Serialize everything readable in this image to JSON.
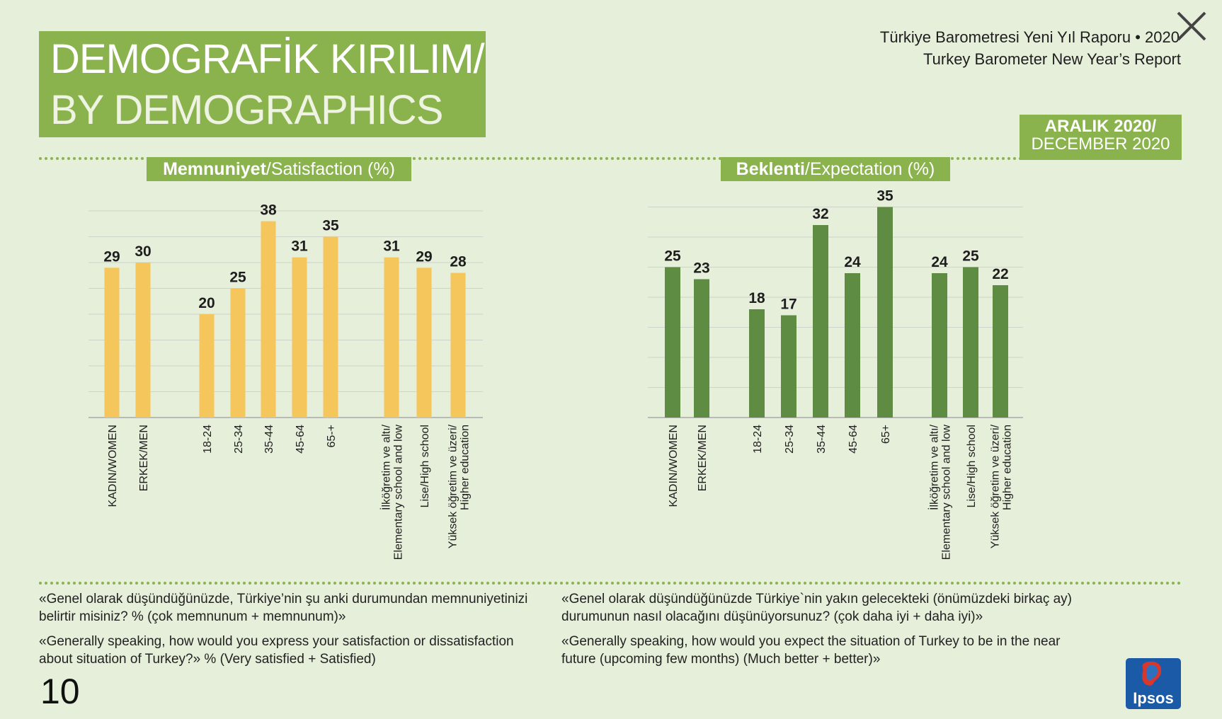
{
  "title": {
    "line1": "DEMOGRAFİK KIRILIM/",
    "line2": "BY DEMOGRAPHICS"
  },
  "report": {
    "turkish": "Türkiye Barometresi Yeni Yıl Raporu • 2020",
    "english": "Turkey Barometer New Year’s Report"
  },
  "date": {
    "turkish": "ARALIK 2020/",
    "english": "DECEMBER 2020"
  },
  "satisfaction_label": {
    "bold": "Memnuniyet",
    "rest": "/Satisfaction (%)"
  },
  "expectation_label": {
    "bold": "Beklenti",
    "rest": "/Expectation (%)"
  },
  "questions": {
    "left_tr": "«Genel olarak düşündüğünüzde, Türkiye’nin şu anki durumundan memnuniyetinizi belirtir misiniz?  % (çok memnunum + memnunum)»",
    "left_en": "«Generally speaking, how would you express your satisfaction or dissatisfaction about  situation of Turkey?» % (Very satisfied + Satisfied)",
    "right_tr": "«Genel olarak düşündüğünüzde Türkiye`nin yakın gelecekteki (önümüzdeki birkaç ay) durumunun nasıl olacağını düşünüyorsunuz? (çok daha iyi + daha iyi)»",
    "right_en": "«Generally speaking, how would you expect the situation of Turkey to be in the near future (upcoming few months) (Much better + better)»"
  },
  "page_number": "10",
  "logo_text": "Ipsos",
  "colors": {
    "green": "#8ab34e",
    "bar_yellow": "#f4c65c",
    "bar_green": "#5e8c42",
    "background": "#e6efda",
    "ipsos_blue": "#1a5aa6"
  },
  "chart_data": [
    {
      "type": "bar",
      "title": "Memnuniyet/Satisfaction (%)",
      "categories": [
        [
          "KADIN/WOMEN"
        ],
        [
          "ERKEK/MEN"
        ],
        [
          "18-24"
        ],
        [
          "25-34"
        ],
        [
          "35-44"
        ],
        [
          "45-64"
        ],
        [
          "65-+"
        ],
        [
          "İlköğretim ve altı/",
          "Elementary school and low"
        ],
        [
          "Lise/High school"
        ],
        [
          "Yüksek öğretim ve üzeri/",
          "Higher education"
        ]
      ],
      "groups": [
        [
          0,
          1
        ],
        [
          2,
          3,
          4,
          5,
          6
        ],
        [
          7,
          8,
          9
        ]
      ],
      "values": [
        29,
        30,
        20,
        25,
        38,
        31,
        35,
        31,
        29,
        28
      ],
      "ylim": [
        0,
        40
      ],
      "grid": true,
      "color": "#f4c65c"
    },
    {
      "type": "bar",
      "title": "Beklenti/Expectation (%)",
      "categories": [
        [
          "KADIN/WOMEN"
        ],
        [
          "ERKEK/MEN"
        ],
        [
          "18-24"
        ],
        [
          "25-34"
        ],
        [
          "35-44"
        ],
        [
          "45-64"
        ],
        [
          "65+"
        ],
        [
          "İlköğretim ve altı/",
          "Elementary school and low"
        ],
        [
          "Lise/High school"
        ],
        [
          "Yüksek öğretim ve üzeri/",
          "Higher education"
        ]
      ],
      "groups": [
        [
          0,
          1
        ],
        [
          2,
          3,
          4,
          5,
          6
        ],
        [
          7,
          8,
          9
        ]
      ],
      "values": [
        25,
        23,
        18,
        17,
        32,
        24,
        35,
        24,
        25,
        22
      ],
      "ylim": [
        0,
        35
      ],
      "grid": true,
      "color": "#5e8c42"
    }
  ]
}
